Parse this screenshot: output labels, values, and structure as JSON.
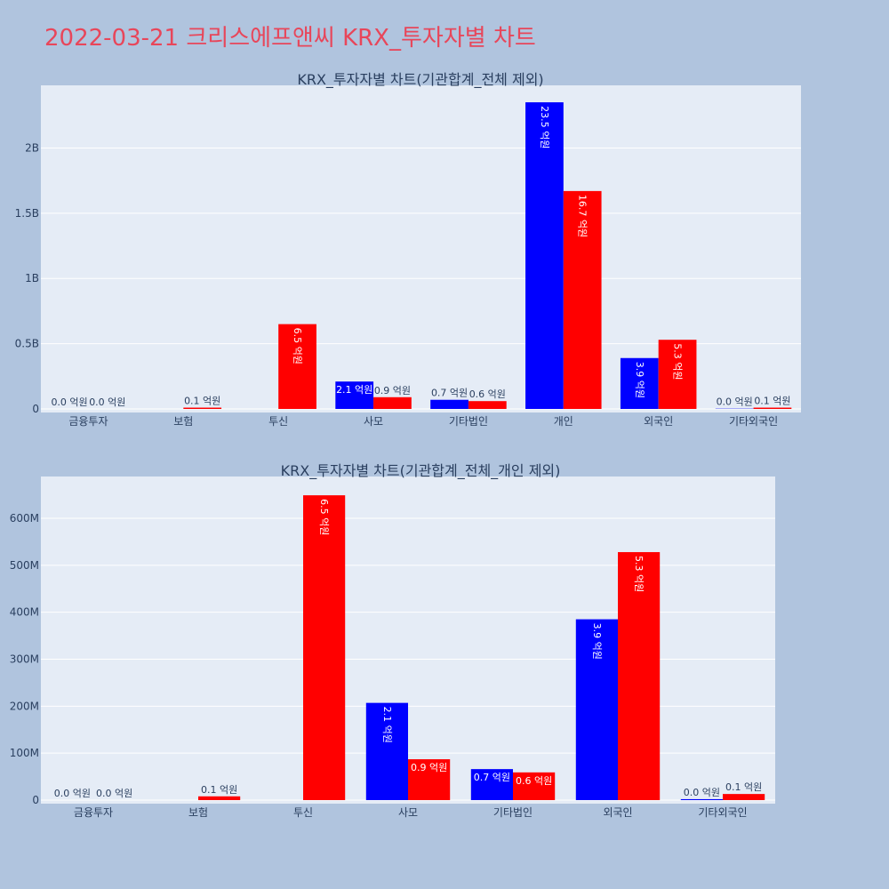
{
  "page": {
    "title": "2022-03-21 크리스에프앤씨 KRX_투자자별 차트"
  },
  "colors": {
    "buy": "#0000ff",
    "sell": "#ff0000",
    "plot_bg": "#e5ecf6",
    "page_bg": "#b0c4de",
    "title": "#e8465a"
  },
  "chart_data": [
    {
      "type": "bar",
      "title": "KRX_투자자별 차트(기관합계_전체 제외)",
      "categories": [
        "금융투자",
        "보험",
        "투신",
        "사모",
        "기타법인",
        "개인",
        "외국인",
        "기타외국인"
      ],
      "series": [
        {
          "color": "#0000ff",
          "values": [
            0,
            0,
            0,
            210000000,
            70000000,
            2350000000,
            390000000,
            2000000
          ],
          "labels": [
            "0.0 억원",
            "",
            "",
            "2.1 억원",
            "0.7 억원",
            "23.5 억원",
            "3.9 억원",
            "0.0 억원"
          ]
        },
        {
          "color": "#ff0000",
          "values": [
            0,
            10000000,
            650000000,
            90000000,
            60000000,
            1670000000,
            530000000,
            10000000
          ],
          "labels": [
            "0.0 억원",
            "0.1 억원",
            "6.5 억원",
            "0.9 억원",
            "0.6 억원",
            "16.7 억원",
            "5.3 억원",
            "0.1 억원"
          ]
        }
      ],
      "yticks": [
        0,
        500000000,
        1000000000,
        1500000000,
        2000000000
      ],
      "ytick_labels": [
        "0",
        "0.5B",
        "1B",
        "1.5B",
        "2B"
      ],
      "ylim": [
        0,
        2480000000
      ],
      "grid": true
    },
    {
      "type": "bar",
      "title": "KRX_투자자별 차트(기관합계_전체_개인 제외)",
      "categories": [
        "금융투자",
        "보험",
        "투신",
        "사모",
        "기타법인",
        "외국인",
        "기타외국인"
      ],
      "series": [
        {
          "color": "#0000ff",
          "values": [
            0,
            0,
            0,
            207000000,
            66000000,
            385000000,
            2000000
          ],
          "labels": [
            "0.0 억원",
            "",
            "",
            "2.1 억원",
            "0.7 억원",
            "3.9 억원",
            "0.0 억원"
          ]
        },
        {
          "color": "#ff0000",
          "values": [
            0,
            8000000,
            649000000,
            87000000,
            59000000,
            528000000,
            13000000
          ],
          "labels": [
            "0.0 억원",
            "0.1 억원",
            "6.5 억원",
            "0.9 억원",
            "0.6 억원",
            "5.3 억원",
            "0.1 억원"
          ]
        }
      ],
      "yticks": [
        0,
        100000000,
        200000000,
        300000000,
        400000000,
        500000000,
        600000000
      ],
      "ytick_labels": [
        "0",
        "100M",
        "200M",
        "300M",
        "400M",
        "500M",
        "600M"
      ],
      "ylim": [
        0,
        689000000
      ],
      "grid": true
    }
  ]
}
